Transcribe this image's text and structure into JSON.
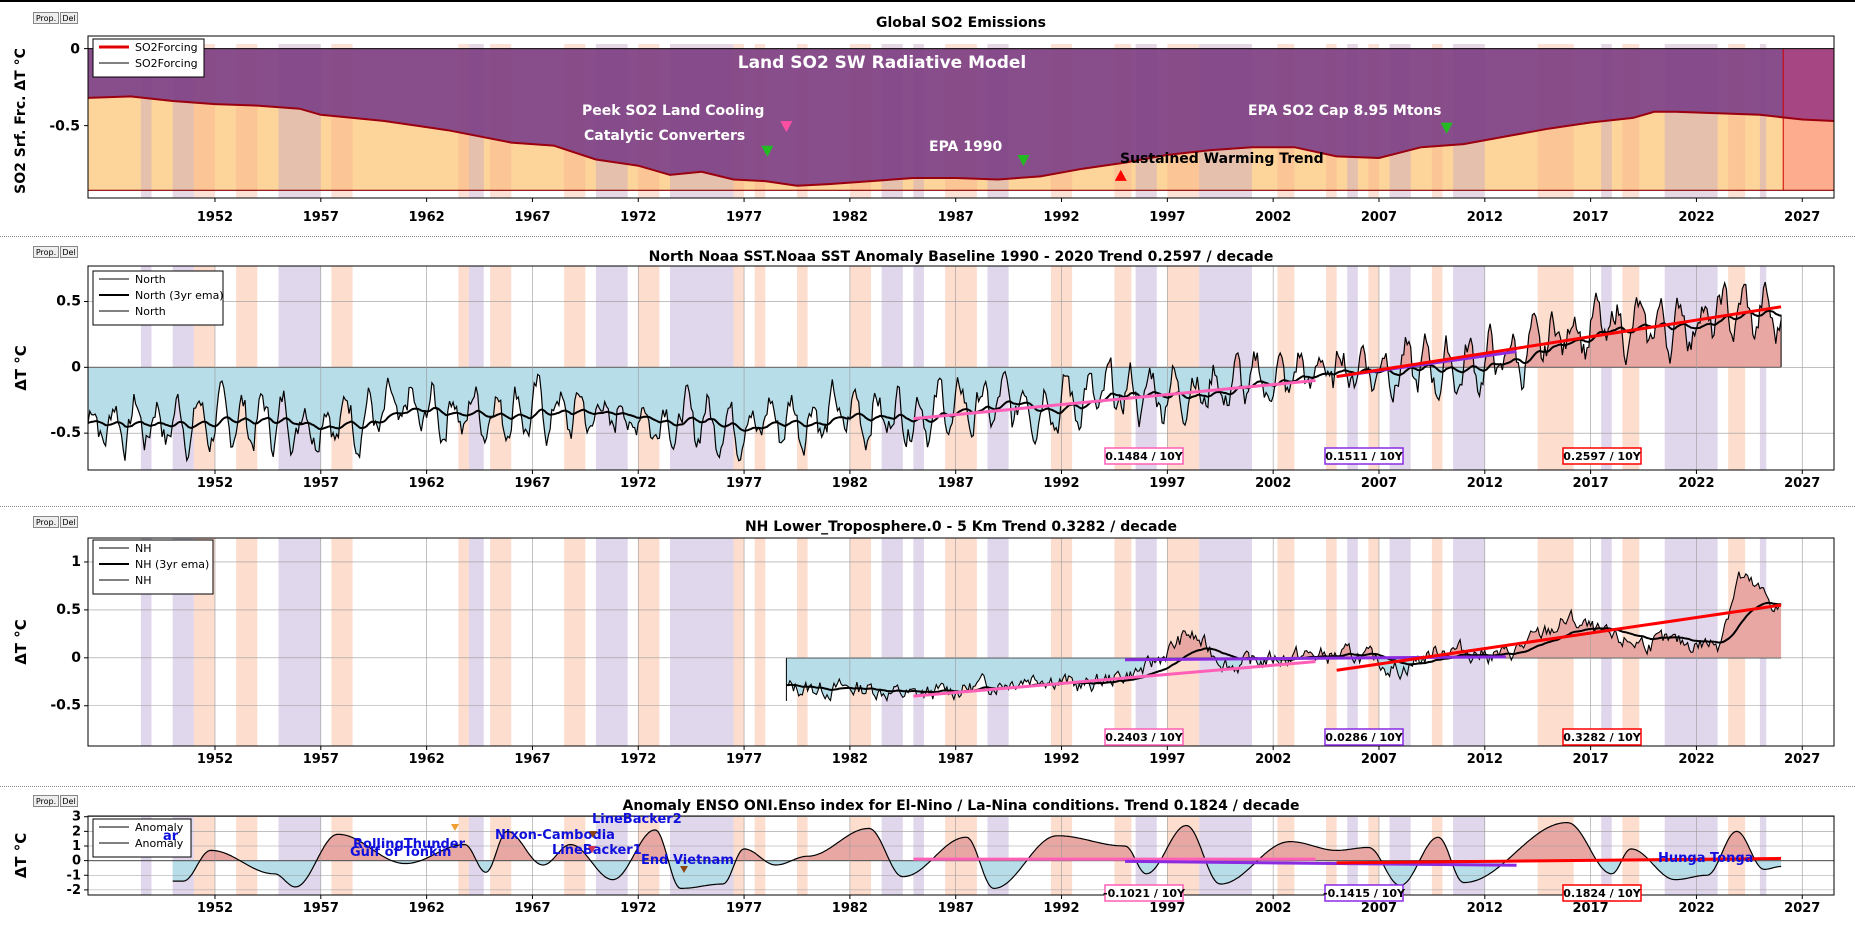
{
  "buttons": {
    "prop": "Prop.",
    "del": "Del"
  },
  "colors": {
    "warm": "#fbd1bd",
    "cool": "#d7c9e6",
    "so2_fill": "#7e3f82",
    "so2_below": "#fdd49a",
    "so2_line": "#9a0010",
    "pos_fill": "#e9a7a4",
    "neg_fill": "#b7dde8",
    "trend_pink": "#ff5fb6",
    "trend_purple": "#8a2be2",
    "trend_red": "#ff0000",
    "event_blue": "#1010dd"
  },
  "xticks": [
    "1952",
    "1957",
    "1962",
    "1967",
    "1972",
    "1977",
    "1982",
    "1987",
    "1992",
    "1997",
    "2002",
    "2007",
    "2012",
    "2017",
    "2022",
    "2027"
  ],
  "chart_data": [
    {
      "id": "so2",
      "type": "area",
      "title": "Global SO2 Emissions",
      "xlabel": "",
      "ylabel": "SO2 Srf. Frc. ΔT °C",
      "xlim": [
        1946,
        2028.5
      ],
      "ylim": [
        -0.97,
        0.03
      ],
      "yticks": [
        "0",
        "-0.5"
      ],
      "legend": {
        "placement": "top-left",
        "entries": [
          "SO2Forcing",
          "SO2Forcing"
        ]
      },
      "annotations": {
        "model": "Land SO2 SW Radiative Model",
        "peak": "Peek SO2 Land Cooling",
        "catalytic": "Catalytic Converters",
        "epa1990": "EPA 1990",
        "warming": "Sustained Warming Trend",
        "epacap": "EPA SO2 Cap 8.95 Mtons"
      },
      "markers": [
        {
          "x": 1979.0,
          "y": -0.51,
          "color": "#ff4fa3",
          "dir": "down"
        },
        {
          "x": 1978.1,
          "y": -0.67,
          "color": "#22bb22",
          "dir": "down"
        },
        {
          "x": 1990.2,
          "y": -0.73,
          "color": "#22bb22",
          "dir": "down"
        },
        {
          "x": 1994.8,
          "y": -0.82,
          "color": "#ff0000",
          "dir": "up"
        },
        {
          "x": 2010.2,
          "y": -0.52,
          "color": "#22bb22",
          "dir": "down"
        }
      ],
      "x": [
        1946,
        1948,
        1950,
        1952,
        1954,
        1956,
        1957,
        1960,
        1963,
        1966,
        1968,
        1970,
        1972,
        1973.5,
        1975,
        1976.5,
        1978,
        1979.5,
        1981,
        1983,
        1985,
        1987,
        1989,
        1991,
        1993,
        1995,
        1997,
        1999,
        2001,
        2003,
        2005,
        2007,
        2009,
        2011,
        2013,
        2015,
        2017,
        2019,
        2020,
        2021,
        2023,
        2025,
        2027,
        2028.5
      ],
      "values": [
        -0.32,
        -0.31,
        -0.34,
        -0.36,
        -0.37,
        -0.39,
        -0.43,
        -0.47,
        -0.53,
        -0.61,
        -0.63,
        -0.72,
        -0.76,
        -0.82,
        -0.8,
        -0.85,
        -0.86,
        -0.89,
        -0.88,
        -0.86,
        -0.84,
        -0.84,
        -0.85,
        -0.83,
        -0.78,
        -0.74,
        -0.69,
        -0.66,
        -0.64,
        -0.64,
        -0.7,
        -0.71,
        -0.64,
        -0.62,
        -0.57,
        -0.52,
        -0.48,
        -0.45,
        -0.41,
        -0.41,
        -0.42,
        -0.43,
        -0.46,
        -0.47
      ],
      "baseline": -0.92
    },
    {
      "id": "sst",
      "type": "line",
      "title": "North Noaa SST.Noaa SST Anomaly Baseline 1990 - 2020 Trend 0.2597 / decade",
      "xlabel": "",
      "ylabel": "ΔT °C",
      "xlim": [
        1946,
        2028.5
      ],
      "ylim": [
        -0.78,
        0.77
      ],
      "yticks": [
        "0.5",
        "0",
        "-0.5"
      ],
      "legend": {
        "placement": "top-left",
        "entries": [
          "North",
          "North (3yr ema)",
          "North"
        ]
      },
      "series_range": [
        1946,
        2026
      ],
      "base_points": [
        [
          1946,
          -0.42
        ],
        [
          1956,
          -0.4
        ],
        [
          1966,
          -0.32
        ],
        [
          1976,
          -0.42
        ],
        [
          1986,
          -0.33
        ],
        [
          1996,
          -0.2
        ],
        [
          2002,
          -0.1
        ],
        [
          2006,
          0.02
        ],
        [
          2010,
          -0.02
        ],
        [
          2014,
          0.1
        ],
        [
          2016,
          0.3
        ],
        [
          2020,
          0.3
        ],
        [
          2024,
          0.42
        ],
        [
          2026,
          0.38
        ]
      ],
      "amplitude": 0.17,
      "trends": [
        {
          "x": [
            1985,
            2004
          ],
          "y": [
            -0.39,
            -0.1
          ],
          "color": "#ff5fb6",
          "label": "0.1484 / 10Y"
        },
        {
          "x": [
            2005,
            2013.5
          ],
          "y": [
            -0.07,
            0.12
          ],
          "color": "#8a2be2",
          "label": "0.1511 / 10Y"
        },
        {
          "x": [
            2005,
            2026
          ],
          "y": [
            -0.07,
            0.46
          ],
          "color": "#ff0000",
          "label": "0.2597 / 10Y"
        }
      ]
    },
    {
      "id": "tlt",
      "type": "line",
      "title": "NH Lower_Troposphere.0 - 5 Km Trend 0.3282 / decade",
      "xlabel": "",
      "ylabel": "ΔT °C",
      "xlim": [
        1946,
        2028.5
      ],
      "ylim": [
        -0.92,
        1.25
      ],
      "yticks": [
        "1",
        "0.5",
        "0",
        "-0.5"
      ],
      "legend": {
        "placement": "top-left",
        "entries": [
          "NH",
          "NH (3yr ema)",
          "NH"
        ]
      },
      "series_range": [
        1979,
        2026
      ],
      "base_points": [
        [
          1979,
          -0.32
        ],
        [
          1983,
          -0.32
        ],
        [
          1985,
          -0.4
        ],
        [
          1988,
          -0.3
        ],
        [
          1991,
          -0.18
        ],
        [
          1993,
          -0.3
        ],
        [
          1996,
          -0.12
        ],
        [
          1998,
          0.25
        ],
        [
          2000,
          -0.08
        ],
        [
          2003,
          0.02
        ],
        [
          2006,
          0.02
        ],
        [
          2008,
          -0.12
        ],
        [
          2010,
          0.1
        ],
        [
          2013,
          0.02
        ],
        [
          2016,
          0.4
        ],
        [
          2018,
          0.18
        ],
        [
          2021,
          0.15
        ],
        [
          2023,
          0.15
        ],
        [
          2024,
          0.85
        ],
        [
          2026,
          0.5
        ]
      ],
      "amplitude": 0.13,
      "trends": [
        {
          "x": [
            1985,
            2004
          ],
          "y": [
            -0.4,
            -0.04
          ],
          "color": "#ff5fb6",
          "label": "0.2403 / 10Y"
        },
        {
          "x": [
            1995,
            2013
          ],
          "y": [
            -0.02,
            0.01
          ],
          "color": "#8a2be2",
          "label": "0.0286 / 10Y"
        },
        {
          "x": [
            2005,
            2026
          ],
          "y": [
            -0.13,
            0.55
          ],
          "color": "#ff0000",
          "label": "0.3282 / 10Y"
        }
      ]
    },
    {
      "id": "enso",
      "type": "line",
      "title": "Anomaly ENSO ONI.Enso index for El-Nino / La-Nina conditions. Trend 0.1824 / decade",
      "xlabel": "",
      "ylabel": "ΔT °C",
      "xlim": [
        1946,
        2028.5
      ],
      "ylim": [
        -2.35,
        3.05
      ],
      "yticks": [
        "3",
        "2",
        "1",
        "0",
        "-1",
        "-2"
      ],
      "legend": {
        "placement": "top-left",
        "entries": [
          "Anomaly",
          "Anomaly"
        ]
      },
      "series_range": [
        1950,
        2026
      ],
      "peaks": [
        [
          1950.5,
          -1.4
        ],
        [
          1951.8,
          0.7
        ],
        [
          1954.8,
          -0.9
        ],
        [
          1955.8,
          -1.8
        ],
        [
          1957.8,
          1.8
        ],
        [
          1961,
          -0.2
        ],
        [
          1963.8,
          1.1
        ],
        [
          1964.8,
          -0.8
        ],
        [
          1965.8,
          2.0
        ],
        [
          1967.5,
          -0.3
        ],
        [
          1968.8,
          1.1
        ],
        [
          1970.8,
          -1.3
        ],
        [
          1972.8,
          2.1
        ],
        [
          1974,
          -1.9
        ],
        [
          1976,
          -1.6
        ],
        [
          1977,
          0.8
        ],
        [
          1978.5,
          -0.3
        ],
        [
          1980,
          0.3
        ],
        [
          1982.9,
          2.2
        ],
        [
          1984.5,
          -1.1
        ],
        [
          1987.5,
          1.6
        ],
        [
          1988.8,
          -1.9
        ],
        [
          1991.8,
          1.7
        ],
        [
          1995,
          1.0
        ],
        [
          1996,
          -0.9
        ],
        [
          1997.9,
          2.4
        ],
        [
          1999.5,
          -1.6
        ],
        [
          2002.8,
          1.3
        ],
        [
          2005,
          0.7
        ],
        [
          2006.5,
          0.9
        ],
        [
          2008,
          -1.7
        ],
        [
          2009.8,
          1.6
        ],
        [
          2011,
          -1.5
        ],
        [
          2015.9,
          2.6
        ],
        [
          2018,
          -0.9
        ],
        [
          2018.9,
          0.8
        ],
        [
          2021,
          -1.3
        ],
        [
          2022.5,
          -1.0
        ],
        [
          2023.9,
          2.0
        ],
        [
          2025.2,
          -0.6
        ],
        [
          2026,
          -0.4
        ]
      ],
      "events": {
        "war": "ar",
        "rolling": "RollingThunder",
        "tonkin": "Gulf of Tonkin",
        "nixon": "Nixon-Cambodia",
        "lb1": "LineBacker1",
        "lb2": "LineBacker2",
        "endv": "End Vietnam",
        "hunga": "Hunga Tonga"
      },
      "trends": [
        {
          "x": [
            1985,
            2004
          ],
          "y": [
            0.1,
            0.1
          ],
          "color": "#ff5fb6",
          "label": "-0.1021 / 10Y"
        },
        {
          "x": [
            1995,
            2013.5
          ],
          "y": [
            -0.05,
            -0.32
          ],
          "color": "#8a2be2",
          "label": "-0.1415 / 10Y"
        },
        {
          "x": [
            2005,
            2026
          ],
          "y": [
            -0.15,
            0.15
          ],
          "color": "#ff0000",
          "label": "0.1824 / 10Y"
        }
      ]
    }
  ],
  "bands": {
    "cool": [
      [
        1948.5,
        1949
      ],
      [
        1950,
        1951
      ],
      [
        1955,
        1957
      ],
      [
        1964,
        1964.7
      ],
      [
        1970,
        1971.5
      ],
      [
        1973.5,
        1976.5
      ],
      [
        1983.5,
        1984.5
      ],
      [
        1985,
        1985.5
      ],
      [
        1988.5,
        1989.5
      ],
      [
        1995.5,
        1996.5
      ],
      [
        1998.5,
        2001
      ],
      [
        2005.5,
        2006
      ],
      [
        2007.5,
        2008.5
      ],
      [
        2010.5,
        2012
      ],
      [
        2017.5,
        2018
      ],
      [
        2020.5,
        2023
      ],
      [
        2025,
        2025.3
      ]
    ],
    "warm": [
      [
        1951,
        1952
      ],
      [
        1953,
        1954
      ],
      [
        1957.5,
        1958.5
      ],
      [
        1963.5,
        1964
      ],
      [
        1965,
        1966
      ],
      [
        1968.5,
        1969.5
      ],
      [
        1972,
        1973
      ],
      [
        1976.5,
        1977
      ],
      [
        1977.5,
        1978
      ],
      [
        1979.5,
        1980
      ],
      [
        1982,
        1983
      ],
      [
        1986.5,
        1988
      ],
      [
        1991.5,
        1992.5
      ],
      [
        1994.5,
        1995.3
      ],
      [
        1997,
        1998.5
      ],
      [
        2002.2,
        2003
      ],
      [
        2004.5,
        2005
      ],
      [
        2006.5,
        2007
      ],
      [
        2009.5,
        2010
      ],
      [
        2014.5,
        2016.2
      ],
      [
        2018.5,
        2019.3
      ],
      [
        2023.5,
        2024.3
      ]
    ]
  }
}
